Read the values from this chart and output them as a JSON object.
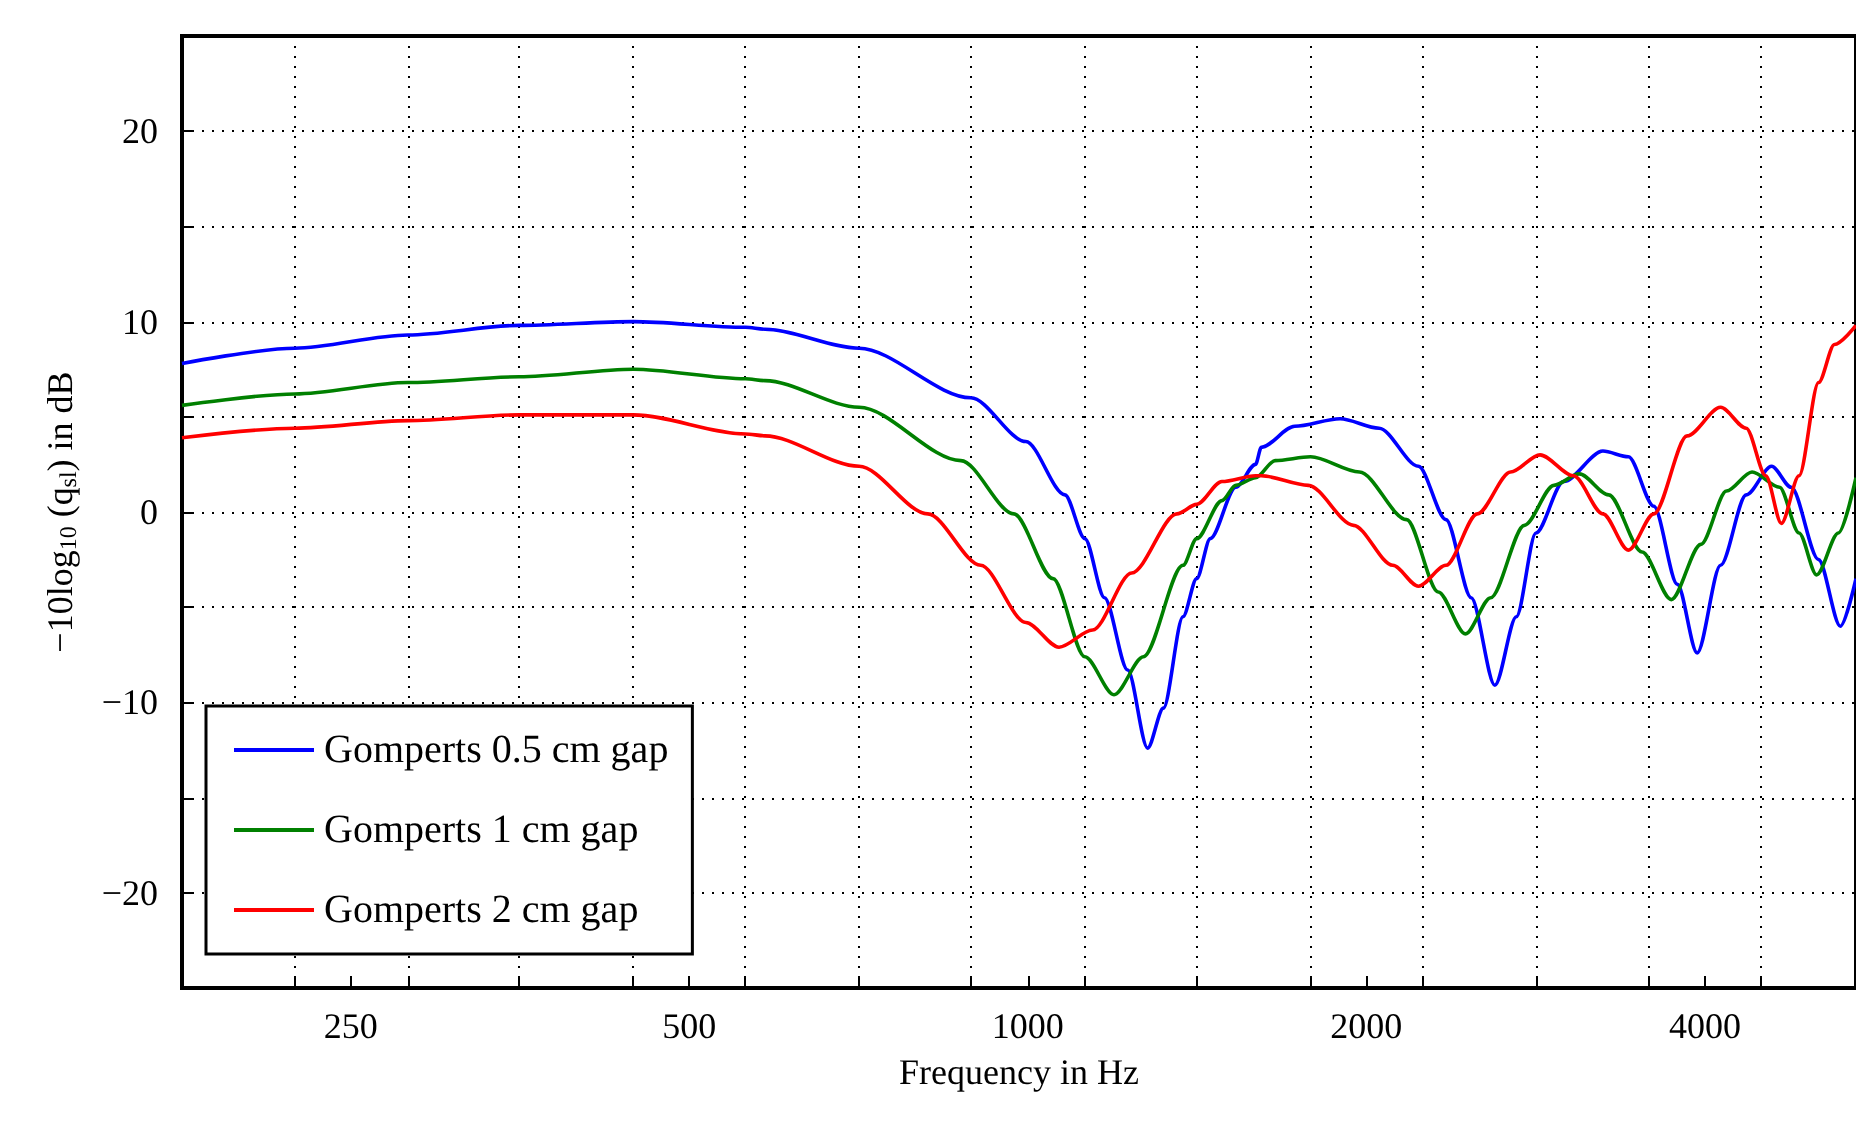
{
  "chart_data": {
    "type": "line",
    "xlabel": "Frequency in Hz",
    "ylabel": "−10log$_{10}$ (q$_{sl}$) in dB",
    "log": "x",
    "grid": true,
    "legend": "bottom left",
    "xlim": [
      177,
      5450
    ],
    "ylim": [
      -25,
      25
    ],
    "xticks": [
      {
        "value": 223,
        "label": null
      },
      250,
      {
        "value": 281,
        "label": null
      },
      {
        "value": 353,
        "label": null
      },
      {
        "value": 446,
        "label": null
      },
      500,
      {
        "value": 561,
        "label": null
      },
      {
        "value": 708,
        "label": null
      },
      {
        "value": 891,
        "label": null
      },
      1000,
      {
        "value": 1122,
        "label": null
      },
      {
        "value": 1414,
        "label": null
      },
      {
        "value": 1782,
        "label": null
      },
      2000,
      {
        "value": 2245,
        "label": null
      },
      {
        "value": 2828,
        "label": null
      },
      {
        "value": 3564,
        "label": null
      },
      4000,
      {
        "value": 4490,
        "label": null
      }
    ],
    "yticks": [
      {
        "value": -20,
        "label": "−20"
      },
      {
        "value": -15,
        "label": null
      },
      {
        "value": -10,
        "label": "−10"
      },
      {
        "value": -5,
        "label": null
      },
      0,
      {
        "value": 5,
        "label": null
      },
      10,
      {
        "value": 15,
        "label": null
      },
      20
    ],
    "series": [
      {
        "name": "Gomperts 0.5 cm gap",
        "color": "#0000ff",
        "x": [
          177,
          223,
          281,
          353,
          446,
          561,
          584,
          708,
          890,
          996,
          1079,
          1124,
          1170,
          1227,
          1278,
          1320,
          1374,
          1413,
          1453,
          1531,
          1594,
          1613,
          1727,
          1895,
          2053,
          2225,
          2354,
          2479,
          2602,
          2719,
          2830,
          2995,
          3246,
          3420,
          3603,
          3781,
          3937,
          4130,
          4353,
          4585,
          4773,
          5048,
          5278,
          5450
        ],
        "values": [
          7.8,
          8.6,
          9.3,
          9.8,
          10,
          9.7,
          9.6,
          8.6,
          6.0,
          3.7,
          0.9,
          -1.4,
          -4.5,
          -8.3,
          -12.4,
          -10.3,
          -5.5,
          -3.5,
          -1.4,
          1.3,
          2.5,
          3.4,
          4.5,
          4.9,
          4.4,
          2.4,
          -0.4,
          -4.5,
          -9.1,
          -5.5,
          -1.1,
          1.6,
          3.2,
          2.9,
          0.3,
          -3.8,
          -7.4,
          -2.8,
          0.9,
          2.4,
          1.3,
          -2.5,
          -6.0,
          -3.5
        ]
      },
      {
        "name": "Gomperts 1 cm gap",
        "color": "#008000",
        "x": [
          177,
          223,
          281,
          353,
          446,
          561,
          584,
          708,
          872,
          972,
          1053,
          1124,
          1193,
          1267,
          1374,
          1413,
          1488,
          1531,
          1594,
          1659,
          1784,
          1972,
          2172,
          2317,
          2450,
          2580,
          2764,
          2936,
          3093,
          3285,
          3517,
          3734,
          3967,
          4181,
          4405,
          4660,
          4850,
          5028,
          5257,
          5450
        ],
        "values": [
          5.6,
          6.2,
          6.8,
          7.1,
          7.5,
          7.0,
          6.9,
          5.5,
          2.7,
          -0.1,
          -3.5,
          -7.6,
          -9.6,
          -7.6,
          -2.8,
          -1.4,
          0.6,
          1.4,
          1.8,
          2.7,
          2.9,
          2.1,
          -0.4,
          -4.2,
          -6.4,
          -4.5,
          -0.7,
          1.4,
          2.0,
          0.9,
          -2.1,
          -4.6,
          -1.7,
          1.1,
          2.1,
          1.3,
          -1.1,
          -3.3,
          -1.1,
          1.8
        ]
      },
      {
        "name": "Gomperts 2 cm gap",
        "color": "#ff0000",
        "x": [
          177,
          223,
          281,
          353,
          446,
          561,
          584,
          708,
          815,
          908,
          996,
          1066,
          1142,
          1237,
          1357,
          1413,
          1488,
          1594,
          1613,
          1776,
          1948,
          2111,
          2225,
          2354,
          2510,
          2687,
          2854,
          3057,
          3246,
          3420,
          3603,
          3857,
          4130,
          4353,
          4531,
          4678,
          4850,
          5048,
          5215,
          5450
        ],
        "values": [
          3.9,
          4.4,
          4.8,
          5.1,
          5.1,
          4.1,
          4.0,
          2.4,
          -0.1,
          -2.8,
          -5.8,
          -7.1,
          -6.2,
          -3.2,
          -0.1,
          0.4,
          1.6,
          1.9,
          1.9,
          1.4,
          -0.7,
          -2.8,
          -3.9,
          -2.8,
          -0.1,
          2.1,
          3.0,
          1.9,
          -0.1,
          -2.0,
          -0.1,
          4.0,
          5.5,
          4.4,
          1.9,
          -0.6,
          1.9,
          6.8,
          8.8,
          9.8
        ]
      }
    ]
  }
}
